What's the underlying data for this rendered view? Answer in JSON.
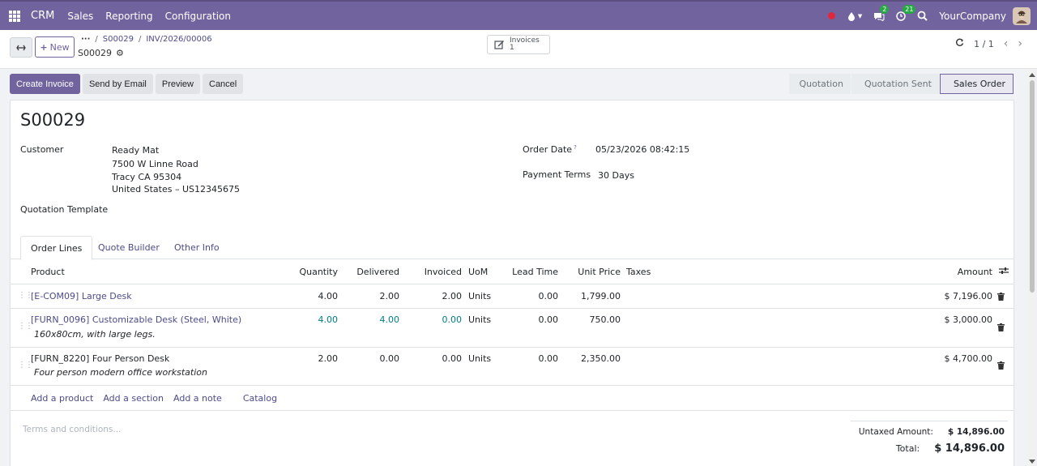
{
  "navbar": {
    "brand": "CRM",
    "menus": [
      "Sales",
      "Reporting",
      "Configuration"
    ],
    "messages_count": "2",
    "activities_count": "21",
    "company": "YourCompany"
  },
  "control_panel": {
    "new_label": "New",
    "breadcrumb": [
      "S00029",
      "INV/2026/00006"
    ],
    "record_name": "S00029",
    "smart_button": {
      "label": "Invoices",
      "count": "1"
    },
    "pager": "1 / 1"
  },
  "actions": [
    "Create Invoice",
    "Send by Email",
    "Preview",
    "Cancel"
  ],
  "statusbar": [
    "Quotation",
    "Quotation Sent",
    "Sales Order"
  ],
  "form": {
    "title": "S00029",
    "customer_label": "Customer",
    "customer_name": "Ready Mat",
    "customer_address": [
      "7500 W Linne Road",
      "Tracy CA 95304",
      "United States – US12345675"
    ],
    "quotation_template_label": "Quotation Template",
    "order_date_label": "Order Date",
    "order_date_help": "?",
    "order_date": "05/23/2026 08:42:15",
    "payment_terms_label": "Payment Terms",
    "payment_terms": "30 Days"
  },
  "tabs": [
    "Order Lines",
    "Quote Builder",
    "Other Info"
  ],
  "order_lines": {
    "headers": {
      "product": "Product",
      "quantity": "Quantity",
      "delivered": "Delivered",
      "invoiced": "Invoiced",
      "uom": "UoM",
      "lead_time": "Lead Time",
      "unit_price": "Unit Price",
      "taxes": "Taxes",
      "amount": "Amount"
    },
    "rows": [
      {
        "product": "[E-COM09] Large Desk",
        "description": "",
        "quantity": "4.00",
        "delivered": "2.00",
        "invoiced": "2.00",
        "uom": "Units",
        "lead_time": "0.00",
        "unit_price": "1,799.00",
        "amount": "$ 7,196.00"
      },
      {
        "product": "[FURN_0096] Customizable Desk (Steel, White)",
        "description": "160x80cm, with large legs.",
        "quantity": "4.00",
        "delivered": "4.00",
        "invoiced": "0.00",
        "uom": "Units",
        "lead_time": "0.00",
        "unit_price": "750.00",
        "amount": "$ 3,000.00"
      },
      {
        "product": "[FURN_8220] Four Person Desk",
        "description": "Four person modern office workstation",
        "quantity": "2.00",
        "delivered": "0.00",
        "invoiced": "0.00",
        "uom": "Units",
        "lead_time": "0.00",
        "unit_price": "2,350.00",
        "amount": "$ 4,700.00"
      }
    ],
    "add_links": [
      "Add a product",
      "Add a section",
      "Add a note",
      "Catalog"
    ]
  },
  "footer": {
    "terms_placeholder": "Terms and conditions...",
    "untaxed_label": "Untaxed Amount:",
    "untaxed_value": "$ 14,896.00",
    "total_label": "Total:",
    "total_value": "$ 14,896.00"
  }
}
